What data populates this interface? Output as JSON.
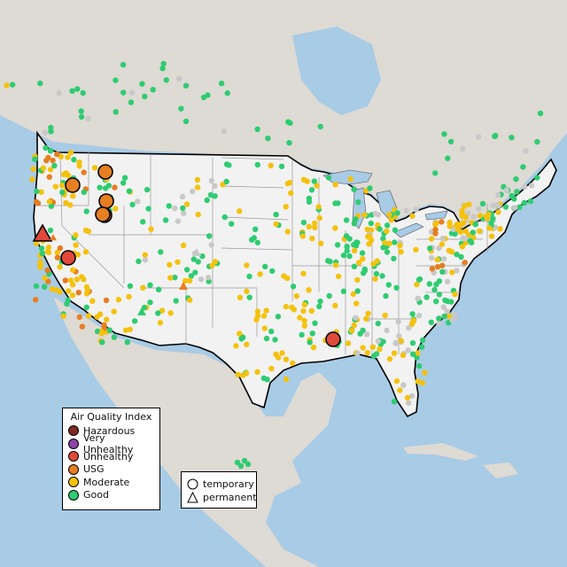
{
  "map": {
    "colors": {
      "water": "#a8cbe6",
      "land_usa": "#f2f2f2",
      "land_other": "#dedad4",
      "border": "#000000",
      "state_line": "#9a9a9a"
    }
  },
  "legend": {
    "title": "Air Quality Index",
    "categories": [
      {
        "label": "Hazardous",
        "color": "#7e2a22"
      },
      {
        "label": "Very Unhealthy",
        "color": "#8f45a8"
      },
      {
        "label": "Unhealthy",
        "color": "#e04a3b"
      },
      {
        "label": "USG",
        "color": "#e67e22"
      },
      {
        "label": "Moderate",
        "color": "#f4c20d"
      },
      {
        "label": "Good",
        "color": "#2ecc71"
      }
    ]
  },
  "shape_legend": {
    "items": [
      {
        "label": "temporary",
        "icon": "circle-icon"
      },
      {
        "label": "permanent",
        "icon": "triangle-icon"
      }
    ]
  }
}
